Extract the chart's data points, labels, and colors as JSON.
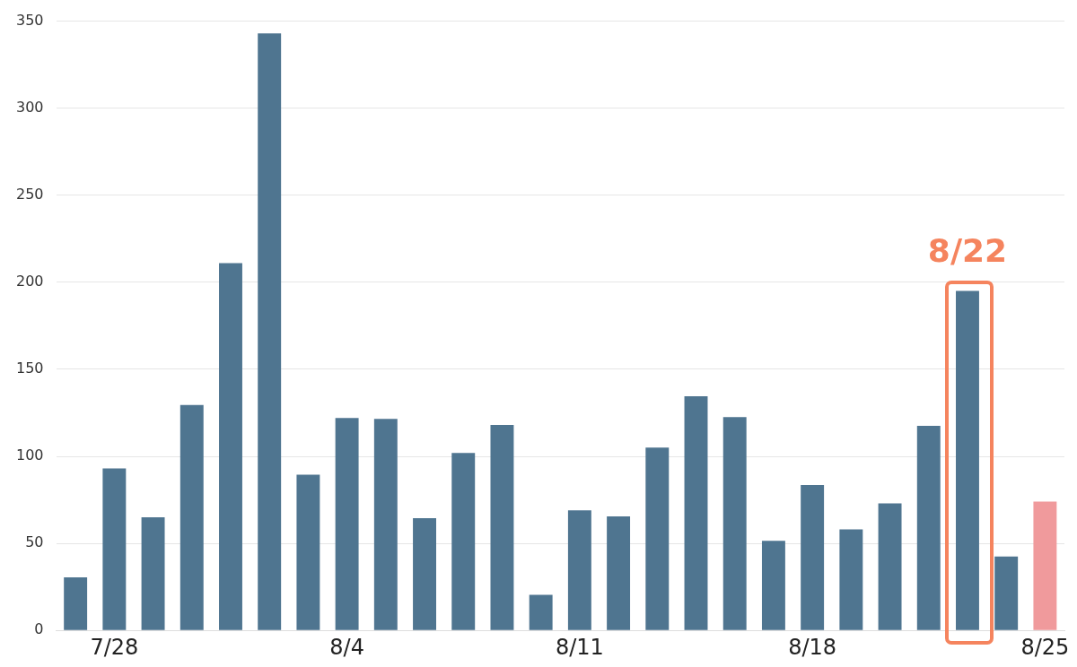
{
  "chart_data": {
    "type": "bar",
    "categories": [
      null,
      "7/28",
      null,
      null,
      null,
      null,
      null,
      "8/4",
      null,
      null,
      null,
      null,
      null,
      "8/11",
      null,
      null,
      null,
      null,
      null,
      "8/18",
      null,
      null,
      null,
      null,
      null,
      "8/25"
    ],
    "values": [
      30.5,
      93,
      65,
      129.5,
      211,
      343,
      89.5,
      122,
      121.5,
      64.5,
      102,
      118,
      20.5,
      69,
      65.5,
      105,
      134.5,
      122.5,
      51.5,
      83.5,
      58,
      73,
      117.5,
      195,
      42.5,
      74
    ],
    "colors": [
      "#4f7590",
      "#4f7590",
      "#4f7590",
      "#4f7590",
      "#4f7590",
      "#4f7590",
      "#4f7590",
      "#4f7590",
      "#4f7590",
      "#4f7590",
      "#4f7590",
      "#4f7590",
      "#4f7590",
      "#4f7590",
      "#4f7590",
      "#4f7590",
      "#4f7590",
      "#4f7590",
      "#4f7590",
      "#4f7590",
      "#4f7590",
      "#4f7590",
      "#4f7590",
      "#4f7590",
      "#4f7590",
      "#f09a9c"
    ],
    "ylim": [
      0,
      350
    ],
    "yticks": [
      0,
      50,
      100,
      150,
      200,
      250,
      300,
      350
    ],
    "grid": "y",
    "annotations": [
      {
        "text": "8/22",
        "y": 195
      }
    ]
  }
}
